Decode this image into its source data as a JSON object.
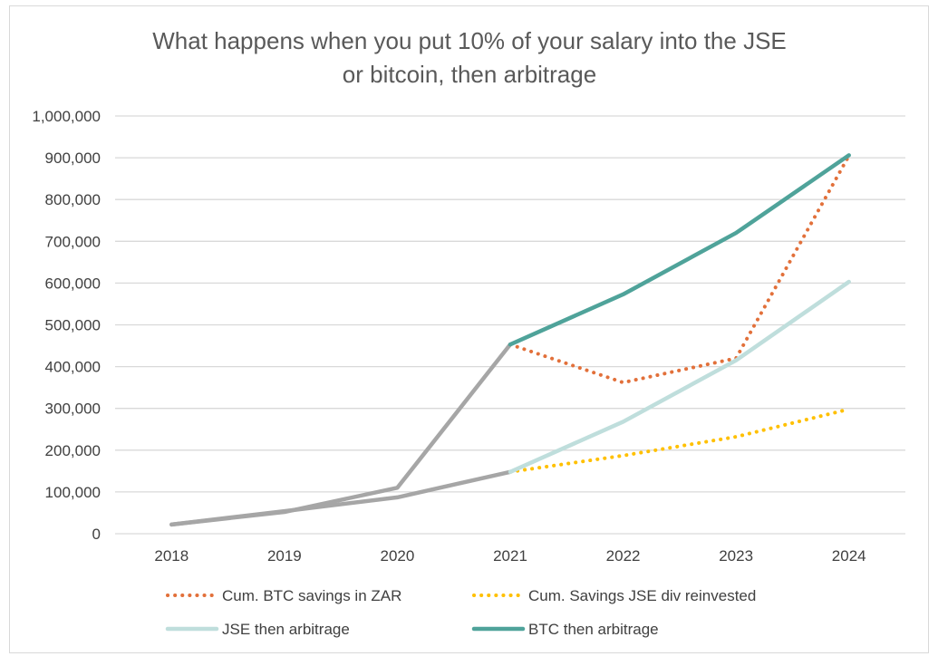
{
  "chart_data": {
    "type": "line",
    "title_lines": [
      "What happens when you put 10% of your salary into the JSE",
      "or bitcoin, then arbitrage"
    ],
    "xlabel": "",
    "ylabel": "",
    "x": [
      "2018",
      "2019",
      "2020",
      "2021",
      "2022",
      "2023",
      "2024"
    ],
    "ylim": [
      0,
      1000000
    ],
    "y_ticks": [
      0,
      100000,
      200000,
      300000,
      400000,
      500000,
      600000,
      700000,
      800000,
      900000,
      1000000
    ],
    "y_tick_labels": [
      "0",
      "100,000",
      "200,000",
      "300,000",
      "400,000",
      "500,000",
      "600,000",
      "700,000",
      "800,000",
      "900,000",
      "1,000,000"
    ],
    "grid": "horizontal",
    "legend_position": "bottom",
    "series": [
      {
        "name": "Cum. BTC savings in ZAR",
        "style": "dotted",
        "color": "#E2703A",
        "segments": [
          {
            "color": "#A6A6A6",
            "style": "solid",
            "values": [
              22000,
              52000,
              110000,
              453000,
              null,
              null,
              null
            ]
          },
          {
            "color": "#E2703A",
            "style": "dotted",
            "values": [
              null,
              null,
              null,
              453000,
              362000,
              420000,
              905000
            ]
          }
        ]
      },
      {
        "name": "Cum. Savings JSE div reinvested",
        "style": "dotted",
        "color": "#FFC000",
        "segments": [
          {
            "color": "#A6A6A6",
            "style": "solid",
            "values": [
              22000,
              54000,
              87000,
              148000,
              null,
              null,
              null
            ]
          },
          {
            "color": "#FFC000",
            "style": "dotted",
            "values": [
              null,
              null,
              null,
              148000,
              187000,
              232000,
              298000
            ]
          }
        ]
      },
      {
        "name": "JSE then arbitrage",
        "style": "solid",
        "color": "#BFDEDC",
        "segments": [
          {
            "color": "#BFDEDC",
            "style": "solid",
            "values": [
              null,
              null,
              null,
              148000,
              268000,
              415000,
              603000
            ]
          }
        ]
      },
      {
        "name": "BTC then arbitrage",
        "style": "solid",
        "color": "#4FA39A",
        "segments": [
          {
            "color": "#4FA39A",
            "style": "solid",
            "values": [
              null,
              null,
              null,
              453000,
              573000,
              720000,
              906000
            ]
          }
        ]
      }
    ]
  }
}
